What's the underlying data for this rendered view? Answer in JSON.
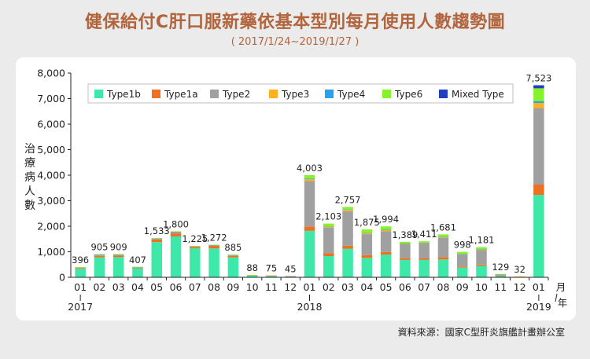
{
  "title": "健保給付C肝口服新藥依基本型別每月使用人數趨勢圖",
  "subtitle": "( 2017/1/24~2019/1/27 )",
  "source": "資料來源：國家C型肝炎旗艦計畫辦公室",
  "chart_data": {
    "type": "bar",
    "stacked": true,
    "ylabel": "治療病人數",
    "xunit_month": "月",
    "xunit_year": "年",
    "ylim": [
      0,
      8000
    ],
    "yticks": [
      "0",
      "1,000",
      "2,000",
      "3,000",
      "4,000",
      "5,000",
      "6,000",
      "7,000",
      "8,000"
    ],
    "grid": "alternating horizontal bands",
    "legend_position": "top",
    "categories": [
      "01",
      "02",
      "03",
      "04",
      "05",
      "06",
      "07",
      "08",
      "09",
      "10",
      "11",
      "12",
      "01",
      "02",
      "03",
      "04",
      "05",
      "06",
      "07",
      "08",
      "09",
      "10",
      "11",
      "12",
      "01"
    ],
    "years": [
      {
        "label": "2017",
        "index": 0
      },
      {
        "label": "2018",
        "index": 12
      },
      {
        "label": "2019",
        "index": 24
      }
    ],
    "totals": [
      "396",
      "905",
      "909",
      "407",
      "1,533",
      "1,800",
      "1,225",
      "1,272",
      "885",
      "88",
      "75",
      "45",
      "4,003",
      "2,103",
      "2,757",
      "1,875",
      "1,994",
      "1,389",
      "1,411",
      "1,681",
      "998",
      "1,181",
      "129",
      "32",
      "7,523"
    ],
    "series": [
      {
        "name": "Type1b",
        "color": "#3de8a8",
        "values": [
          330,
          780,
          790,
          350,
          1380,
          1600,
          1130,
          1130,
          780,
          75,
          65,
          40,
          1820,
          830,
          1120,
          760,
          890,
          680,
          680,
          700,
          380,
          450,
          60,
          20,
          3230
        ]
      },
      {
        "name": "Type1a",
        "color": "#f07020",
        "values": [
          20,
          60,
          55,
          20,
          100,
          120,
          60,
          100,
          60,
          6,
          5,
          3,
          170,
          110,
          120,
          110,
          100,
          60,
          60,
          90,
          40,
          50,
          6,
          3,
          400
        ]
      },
      {
        "name": "Type2",
        "color": "#a0a0a0",
        "values": [
          40,
          55,
          55,
          30,
          35,
          55,
          25,
          30,
          35,
          5,
          4,
          2,
          1780,
          1000,
          1350,
          820,
          820,
          550,
          580,
          760,
          470,
          560,
          50,
          8,
          3000
        ]
      },
      {
        "name": "Type3",
        "color": "#ffb01e",
        "values": [
          3,
          5,
          5,
          3,
          8,
          10,
          5,
          6,
          5,
          1,
          1,
          0,
          70,
          40,
          50,
          40,
          40,
          25,
          25,
          30,
          20,
          25,
          3,
          1,
          200
        ]
      },
      {
        "name": "Type4",
        "color": "#2aa0f0",
        "values": [
          0,
          2,
          2,
          1,
          3,
          5,
          2,
          2,
          2,
          0,
          0,
          0,
          23,
          13,
          17,
          15,
          14,
          9,
          11,
          11,
          8,
          11,
          1,
          0,
          73
        ]
      },
      {
        "name": "Type6",
        "color": "#86f22a",
        "values": [
          3,
          3,
          2,
          3,
          7,
          10,
          3,
          4,
          3,
          1,
          0,
          0,
          140,
          110,
          100,
          130,
          130,
          65,
          55,
          90,
          80,
          85,
          9,
          0,
          500
        ]
      },
      {
        "name": "Mixed Type",
        "color": "#1f3fc0",
        "values": [
          0,
          0,
          0,
          0,
          0,
          0,
          0,
          0,
          0,
          0,
          0,
          0,
          0,
          0,
          0,
          0,
          0,
          0,
          0,
          0,
          0,
          0,
          0,
          0,
          120
        ]
      }
    ]
  }
}
